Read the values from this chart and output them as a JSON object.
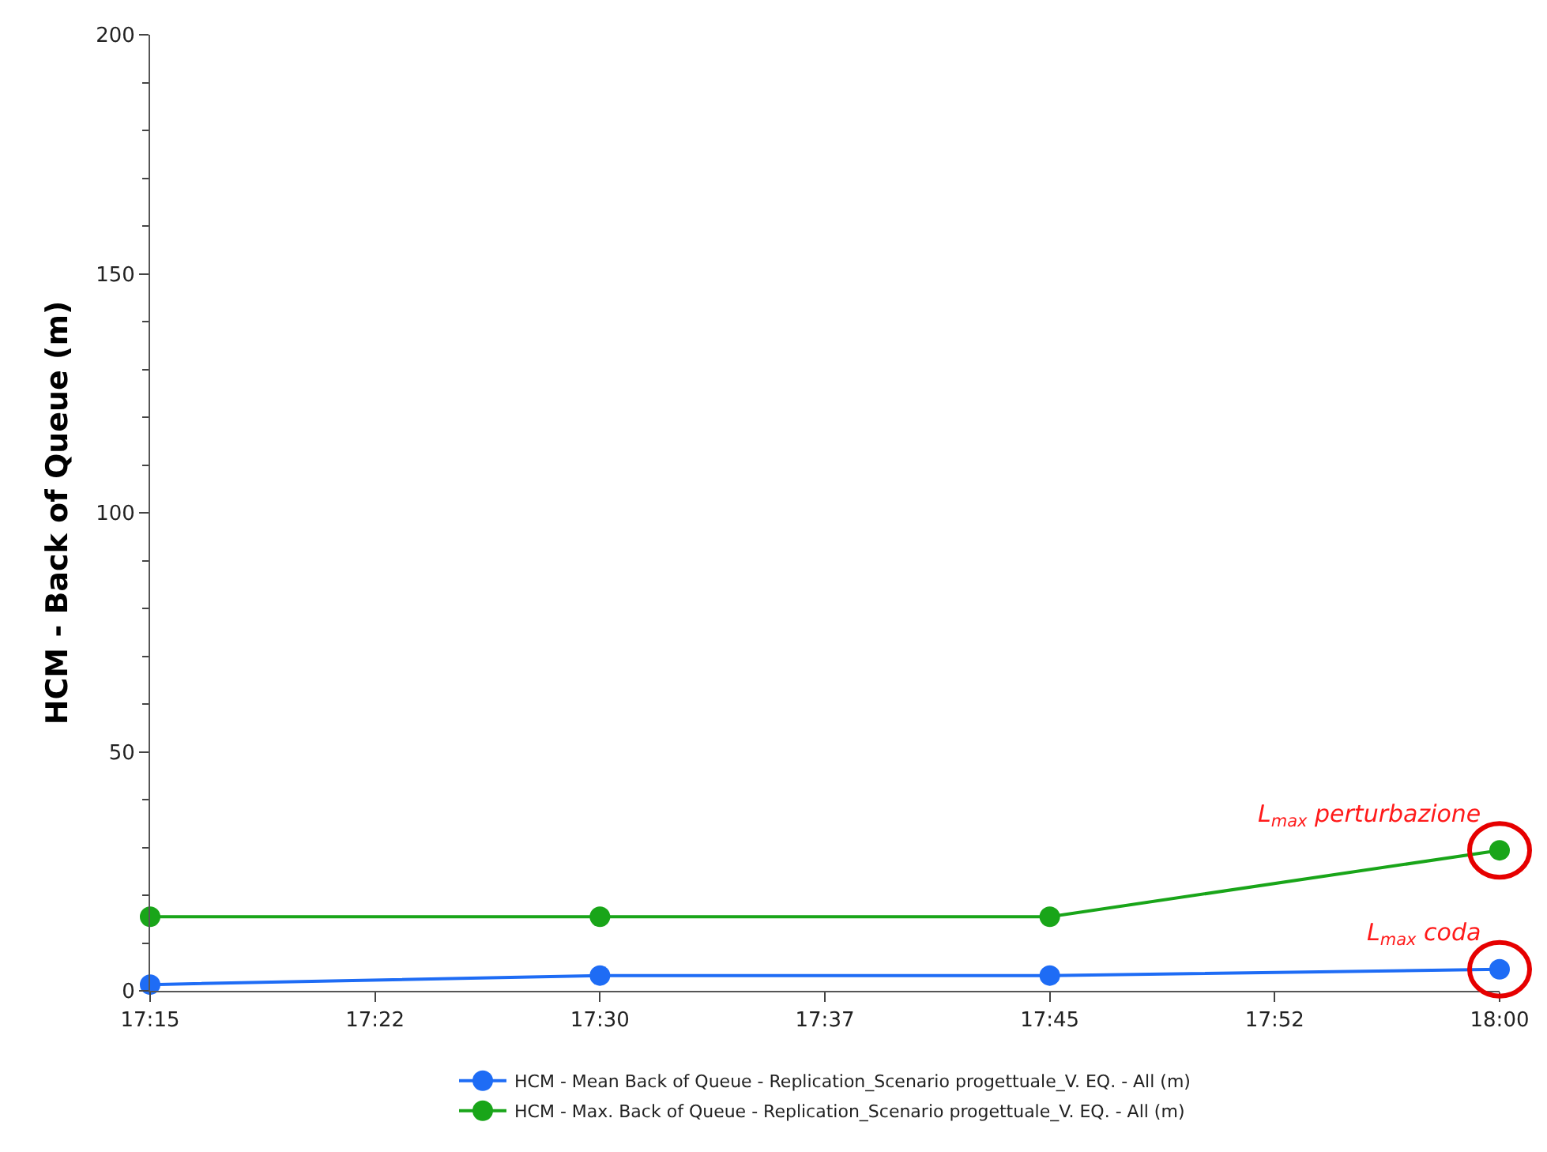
{
  "chart_data": {
    "type": "line",
    "ylabel": "HCM - Back of Queue (m)",
    "x": [
      17.25,
      17.5,
      17.75,
      18
    ],
    "xlim": [
      17.25,
      18
    ],
    "xticks": [
      {
        "value": 17.25,
        "label": "17:15"
      },
      {
        "value": 17.375,
        "label": "17:22"
      },
      {
        "value": 17.5,
        "label": "17:30"
      },
      {
        "value": 17.625,
        "label": "17:37"
      },
      {
        "value": 17.75,
        "label": "17:45"
      },
      {
        "value": 17.875,
        "label": "17:52"
      },
      {
        "value": 18,
        "label": "18:00"
      }
    ],
    "ylim": [
      0,
      200
    ],
    "yticks": [
      0,
      50,
      100,
      150,
      200
    ],
    "series": [
      {
        "name": "HCM - Mean Back of Queue - Replication_Scenario progettuale_V. EQ. - All (m)",
        "color": "#1e6cf5",
        "values": [
          1.3,
          3.2,
          3.2,
          4.5
        ]
      },
      {
        "name": "HCM - Max. Back of Queue - Replication_Scenario progettuale_V. EQ. - All (m)",
        "color": "#19a519",
        "values": [
          15.5,
          15.5,
          15.5,
          29.4
        ]
      }
    ],
    "annotations": [
      {
        "text": "L$_{max}$ perturbazione",
        "x": 18,
        "y": 29.4
      },
      {
        "text": "L$_{max}$ coda",
        "x": 18,
        "y": 4.5
      }
    ],
    "grid": false,
    "legend": "bottom",
    "marker": "circle",
    "line_style": "solid"
  }
}
